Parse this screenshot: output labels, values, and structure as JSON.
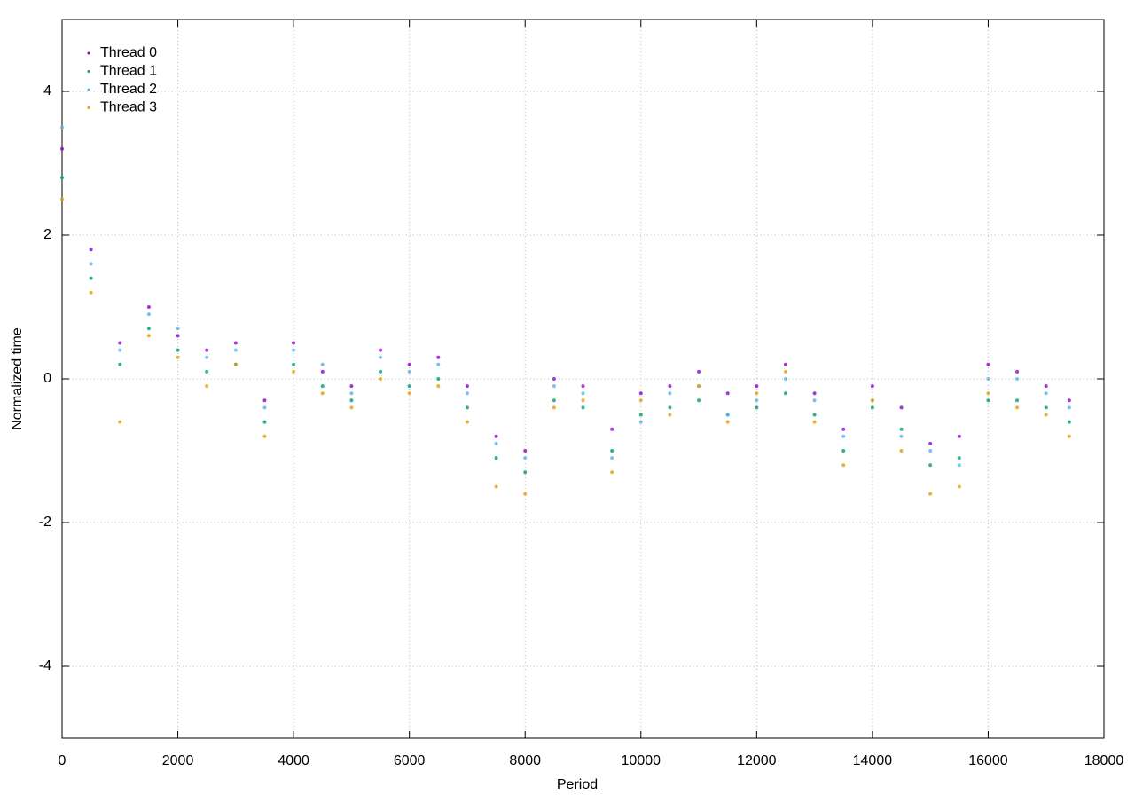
{
  "chart_data": {
    "type": "scatter",
    "xlabel": "Period",
    "ylabel": "Normalized time",
    "x": [
      0,
      500,
      1000,
      1500,
      2000,
      2500,
      3000,
      3500,
      4000,
      4500,
      5000,
      5500,
      6000,
      6500,
      7000,
      7500,
      8000,
      8500,
      9000,
      9500,
      10000,
      10500,
      11000,
      11500,
      12000,
      12500,
      13000,
      13500,
      14000,
      14500,
      15000,
      15500,
      16000,
      16500,
      17000,
      17400
    ],
    "series": [
      {
        "name": "Thread 0",
        "color": "#9400d3",
        "values": [
          3.2,
          1.8,
          0.5,
          1.0,
          0.6,
          0.4,
          0.5,
          -0.3,
          0.5,
          0.1,
          -0.1,
          0.4,
          0.2,
          0.3,
          -0.1,
          -0.8,
          -1.0,
          0.0,
          -0.1,
          -0.7,
          -0.2,
          -0.1,
          0.1,
          -0.2,
          -0.1,
          0.2,
          -0.2,
          -0.7,
          -0.1,
          -0.4,
          -0.9,
          -0.8,
          0.2,
          0.1,
          -0.1,
          -0.3
        ]
      },
      {
        "name": "Thread 1",
        "color": "#009e73",
        "values": [
          2.8,
          1.4,
          0.2,
          0.7,
          0.4,
          0.1,
          0.2,
          -0.6,
          0.2,
          -0.1,
          -0.3,
          0.1,
          -0.1,
          0.0,
          -0.4,
          -1.1,
          -1.3,
          -0.3,
          -0.4,
          -1.0,
          -0.5,
          -0.4,
          -0.3,
          -0.5,
          -0.4,
          -0.2,
          -0.5,
          -1.0,
          -0.4,
          -0.7,
          -1.2,
          -1.1,
          -0.3,
          -0.3,
          -0.4,
          -0.6
        ]
      },
      {
        "name": "Thread 2",
        "color": "#56b4e9",
        "values": [
          3.5,
          1.6,
          0.4,
          0.9,
          0.7,
          0.3,
          0.4,
          -0.4,
          0.4,
          0.2,
          -0.2,
          0.3,
          0.1,
          0.2,
          -0.2,
          -0.9,
          -1.1,
          -0.1,
          -0.2,
          -1.1,
          -0.6,
          -0.2,
          -0.1,
          -0.5,
          -0.3,
          0.0,
          -0.3,
          -0.8,
          -0.3,
          -0.8,
          -1.0,
          -1.2,
          0.0,
          0.0,
          -0.2,
          -0.4
        ]
      },
      {
        "name": "Thread 3",
        "color": "#e69f00",
        "values": [
          2.5,
          1.2,
          -0.6,
          0.6,
          0.3,
          -0.1,
          0.2,
          -0.8,
          0.1,
          -0.2,
          -0.4,
          0.0,
          -0.2,
          -0.1,
          -0.6,
          -1.5,
          -1.6,
          -0.4,
          -0.3,
          -1.3,
          -0.3,
          -0.5,
          -0.1,
          -0.6,
          -0.2,
          0.1,
          -0.6,
          -1.2,
          -0.3,
          -1.0,
          -1.6,
          -1.5,
          -0.2,
          -0.4,
          -0.5,
          -0.8
        ]
      }
    ],
    "xlim": [
      0,
      18000
    ],
    "xticks": [
      0,
      2000,
      4000,
      6000,
      8000,
      10000,
      12000,
      14000,
      16000,
      18000
    ],
    "ylim": [
      -5,
      5
    ],
    "yticks": [
      -4,
      -2,
      0,
      2,
      4
    ],
    "grid": true,
    "legend": "top left"
  }
}
